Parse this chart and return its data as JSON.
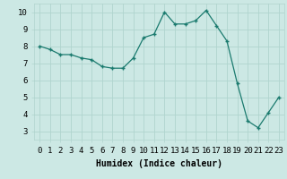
{
  "x": [
    0,
    1,
    2,
    3,
    4,
    5,
    6,
    7,
    8,
    9,
    10,
    11,
    12,
    13,
    14,
    15,
    16,
    17,
    18,
    19,
    20,
    21,
    22,
    23
  ],
  "y": [
    8.0,
    7.8,
    7.5,
    7.5,
    7.3,
    7.2,
    6.8,
    6.7,
    6.7,
    7.3,
    8.5,
    8.7,
    10.0,
    9.3,
    9.3,
    9.5,
    10.1,
    9.2,
    8.3,
    5.8,
    3.6,
    3.2,
    4.1,
    5.0
  ],
  "line_color": "#1a7a6e",
  "marker": "+",
  "marker_size": 3,
  "bg_color": "#cce8e4",
  "grid_color": "#b0d4ce",
  "xlabel": "Humidex (Indice chaleur)",
  "xlabel_fontsize": 7,
  "tick_fontsize": 6.5,
  "ylim": [
    2.5,
    10.5
  ],
  "xlim": [
    -0.5,
    23.5
  ],
  "yticks": [
    3,
    4,
    5,
    6,
    7,
    8,
    9,
    10
  ],
  "xticks": [
    0,
    1,
    2,
    3,
    4,
    5,
    6,
    7,
    8,
    9,
    10,
    11,
    12,
    13,
    14,
    15,
    16,
    17,
    18,
    19,
    20,
    21,
    22,
    23
  ]
}
